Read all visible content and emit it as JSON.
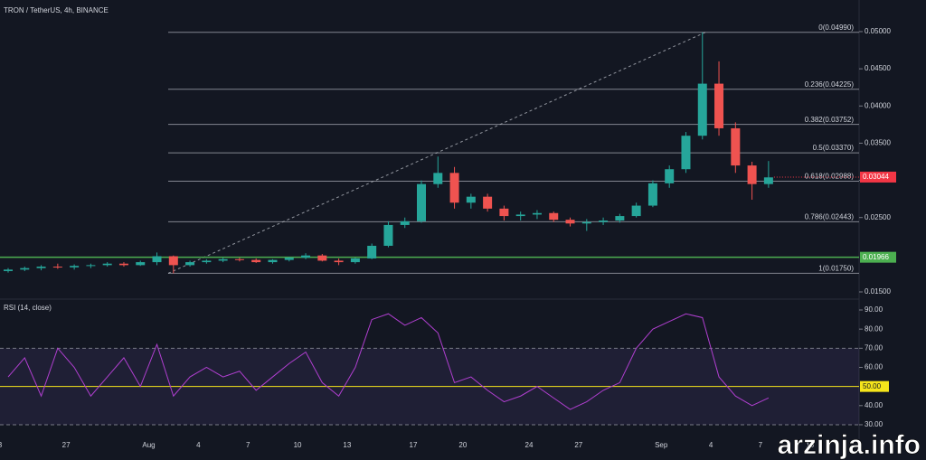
{
  "chart_data": [
    {
      "type": "candlestick",
      "title": "TRON / TetherUS, 4h, BINANCE",
      "categories": [
        "3",
        null,
        null,
        null,
        "27",
        null,
        null,
        null,
        null,
        "Aug",
        null,
        null,
        "4",
        null,
        null,
        "7",
        null,
        null,
        "10",
        null,
        null,
        "13",
        null,
        null,
        null,
        "17",
        null,
        null,
        "20",
        null,
        null,
        null,
        "24",
        null,
        null,
        "27",
        null,
        null,
        null,
        null,
        "Sep",
        null,
        null,
        "4",
        null,
        null,
        "7",
        null,
        null,
        "10"
      ],
      "open": [
        0.0178,
        0.018,
        0.0182,
        0.0184,
        0.0183,
        0.0185,
        0.0186,
        0.0188,
        0.0186,
        0.019,
        0.0198,
        0.0186,
        0.019,
        0.0192,
        0.0194,
        0.0193,
        0.019,
        0.0193,
        0.0196,
        0.0199,
        0.0192,
        0.019,
        0.0195,
        0.0212,
        0.024,
        0.0245,
        0.0295,
        0.031,
        0.027,
        0.0278,
        0.0262,
        0.0252,
        0.0254,
        0.0256,
        0.0247,
        0.0242,
        0.0244,
        0.0246,
        0.0252,
        0.0266,
        0.0296,
        0.0315,
        0.036,
        0.043,
        0.037,
        0.032,
        0.0295,
        null,
        null,
        null
      ],
      "high": [
        0.0182,
        0.0184,
        0.0186,
        0.0188,
        0.0187,
        0.0188,
        0.019,
        0.019,
        0.0192,
        0.0203,
        0.0199,
        0.0192,
        0.0194,
        0.0196,
        0.0196,
        0.0195,
        0.0194,
        0.0197,
        0.0202,
        0.0201,
        0.0195,
        0.0196,
        0.0215,
        0.0245,
        0.025,
        0.03,
        0.0332,
        0.0318,
        0.0282,
        0.0282,
        0.0266,
        0.0258,
        0.026,
        0.0258,
        0.025,
        0.0248,
        0.025,
        0.0255,
        0.027,
        0.03,
        0.032,
        0.0365,
        0.0499,
        0.046,
        0.0378,
        0.0325,
        0.0326,
        null,
        null,
        null
      ],
      "low": [
        0.0176,
        0.0178,
        0.0179,
        0.0181,
        0.018,
        0.0182,
        0.0184,
        0.0184,
        0.0185,
        0.0186,
        0.0175,
        0.0184,
        0.0188,
        0.019,
        0.0191,
        0.0189,
        0.0188,
        0.0191,
        0.0194,
        0.0191,
        0.0186,
        0.0188,
        0.0194,
        0.021,
        0.0236,
        0.0243,
        0.029,
        0.0262,
        0.0262,
        0.0258,
        0.0246,
        0.0246,
        0.0248,
        0.0244,
        0.0238,
        0.0232,
        0.024,
        0.0243,
        0.025,
        0.0264,
        0.029,
        0.031,
        0.0355,
        0.036,
        0.031,
        0.0274,
        0.029,
        null,
        null,
        null
      ],
      "close": [
        0.018,
        0.0182,
        0.0184,
        0.0183,
        0.0185,
        0.0186,
        0.0188,
        0.0186,
        0.019,
        0.0198,
        0.0186,
        0.019,
        0.0192,
        0.0194,
        0.0193,
        0.019,
        0.0193,
        0.0196,
        0.0199,
        0.0192,
        0.019,
        0.0195,
        0.0212,
        0.024,
        0.0245,
        0.0295,
        0.031,
        0.027,
        0.0278,
        0.0262,
        0.0252,
        0.0254,
        0.0256,
        0.0247,
        0.0242,
        0.0244,
        0.0246,
        0.0252,
        0.0266,
        0.0296,
        0.0315,
        0.036,
        0.043,
        0.037,
        0.032,
        0.0295,
        0.0304,
        null,
        null,
        null
      ],
      "up_color": "#26a69a",
      "down_color": "#ef5350",
      "ylim": [
        0.01415,
        0.05425
      ],
      "yticks": [
        {
          "value": 0.05,
          "label": "0.05000"
        },
        {
          "value": 0.045,
          "label": "0.04500"
        },
        {
          "value": 0.04,
          "label": "0.04000"
        },
        {
          "value": 0.035,
          "label": "0.03500"
        },
        {
          "value": 0.03,
          "label": "0.03000"
        },
        {
          "value": 0.025,
          "label": "0.02500"
        },
        {
          "value": 0.015,
          "label": "0.01500"
        }
      ],
      "fib_levels": [
        {
          "value": 0.0499,
          "label": "0(0.04990)"
        },
        {
          "value": 0.04225,
          "label": "0.236(0.04225)"
        },
        {
          "value": 0.03752,
          "label": "0.382(0.03752)"
        },
        {
          "value": 0.0337,
          "label": "0.5(0.03370)"
        },
        {
          "value": 0.02988,
          "label": "0.618(0.02988)"
        },
        {
          "value": 0.02443,
          "label": "0.786(0.02443)"
        },
        {
          "value": 0.0175,
          "label": "1(0.01750)"
        }
      ],
      "hline": {
        "value": 0.01966,
        "label": "0.01966",
        "color": "#4caf50"
      },
      "last_price": {
        "value": 0.03044,
        "label": "0.03044",
        "color": "#f23645"
      },
      "watermark": "arzinja.info"
    },
    {
      "type": "line",
      "title": "RSI (14, close)",
      "color": "#b03fd0",
      "values": [
        55,
        65,
        45,
        70,
        60,
        45,
        55,
        65,
        50,
        72,
        45,
        55,
        60,
        55,
        58,
        48,
        55,
        62,
        68,
        52,
        45,
        60,
        85,
        88,
        82,
        86,
        78,
        52,
        55,
        48,
        42,
        45,
        50,
        44,
        38,
        42,
        48,
        52,
        70,
        80,
        84,
        88,
        86,
        55,
        45,
        40,
        44,
        null,
        null,
        null
      ],
      "ylim": [
        22.9,
        95.2
      ],
      "yticks": [
        {
          "value": 90,
          "label": "90.00"
        },
        {
          "value": 80,
          "label": "80.00"
        },
        {
          "value": 70,
          "label": "70.00"
        },
        {
          "value": 60,
          "label": "60.00"
        },
        {
          "value": 40,
          "label": "40.00"
        },
        {
          "value": 30,
          "label": "30.00"
        }
      ],
      "upper_band": 70,
      "lower_band": 30,
      "mid_line": {
        "value": 50,
        "label": "50.00",
        "color": "#f5e51b"
      }
    }
  ]
}
